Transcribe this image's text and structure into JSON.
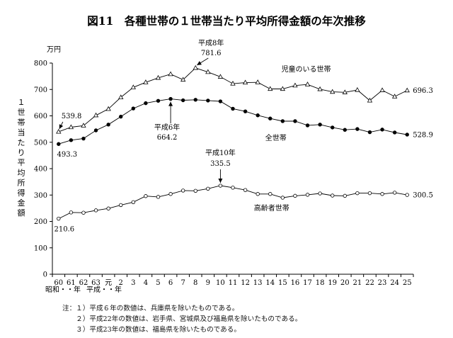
{
  "figure": {
    "title": "図11　各種世帯の１世帯当たり平均所得金額の年次推移",
    "unit": "万円",
    "ylabel": "１世帯当たり平均所得金額",
    "era_showa": "昭和・・年",
    "era_heisei": "平成・・年"
  },
  "chart_data": {
    "type": "line",
    "title": "図11　各種世帯の１世帯当たり平均所得金額の年次推移",
    "ylabel": "１世帯当たり平均所得金額",
    "unit": "万円",
    "ylim": [
      0,
      800
    ],
    "yticks": [
      "0",
      "100",
      "200",
      "300",
      "400",
      "500",
      "600",
      "700",
      "800"
    ],
    "categories": [
      "60",
      "61",
      "62",
      "63",
      "元",
      "2",
      "3",
      "4",
      "5",
      "6",
      "7",
      "8",
      "9",
      "10",
      "11",
      "12",
      "13",
      "14",
      "15",
      "16",
      "17",
      "18",
      "19",
      "20",
      "21",
      "22",
      "23",
      "24",
      "25"
    ],
    "grid": false,
    "series": [
      {
        "name": "児童のいる世帯",
        "marker": "triangle",
        "values": [
          539.8,
          557,
          563,
          602,
          626,
          670,
          708,
          727,
          744,
          758,
          737,
          781.6,
          766,
          748,
          722,
          726,
          727,
          702,
          702,
          715,
          719,
          701,
          691,
          689,
          698,
          658,
          697,
          673,
          696.3
        ]
      },
      {
        "name": "全世帯",
        "marker": "dot",
        "values": [
          493.3,
          508,
          514,
          545,
          567,
          597,
          628,
          648,
          657,
          664.2,
          659,
          661,
          658,
          655,
          627,
          617,
          602,
          590,
          580,
          580,
          564,
          567,
          556,
          547,
          550,
          538,
          548,
          537,
          528.9
        ]
      },
      {
        "name": "高齢者世帯",
        "marker": "circle",
        "values": [
          210.6,
          234,
          233,
          242,
          249,
          262,
          273,
          296,
          293,
          304,
          317,
          316,
          324,
          335.5,
          328,
          319,
          304,
          304,
          290,
          297,
          301,
          306,
          298,
          297,
          307,
          307,
          304,
          309,
          300.5
        ]
      }
    ],
    "data_labels": {
      "child_start": "539.8",
      "all_start": "493.3",
      "elderly_start": "210.6",
      "child_peak_year": "平成8年",
      "child_peak_value": "781.6",
      "all_peak_year": "平成6年",
      "all_peak_value": "664.2",
      "elderly_peak_year": "平成10年",
      "elderly_peak_value": "335.5",
      "child_end": "696.3",
      "all_end": "528.9",
      "elderly_end": "300.5"
    }
  },
  "notes": [
    "注：１）平成６年の数値は、兵庫県を除いたものである。",
    "　　２）平成22年の数値は、岩手県、宮城県及び福島県を除いたものである。",
    "　　３）平成23年の数値は、福島県を除いたものである。"
  ]
}
